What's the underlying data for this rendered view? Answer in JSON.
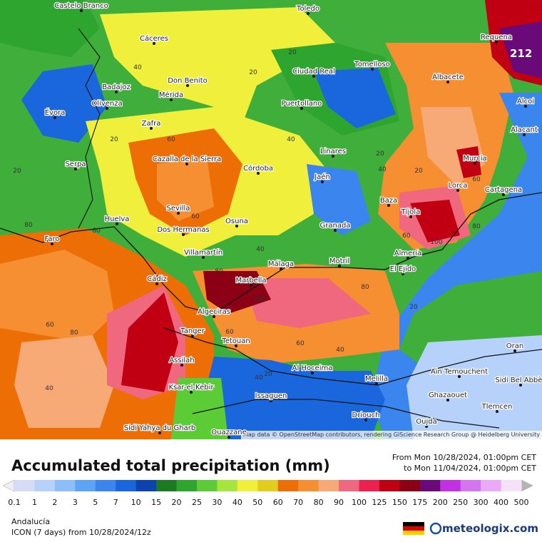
{
  "map": {
    "max_value": 212,
    "attribution": "Map data © OpenStreetMap contributors, rendering GIScience Research Group @ Heidelberg University",
    "cities": [
      "Castelo Branco",
      "Toledo",
      "Cáceres",
      "Requena",
      "Badajoz",
      "Don Benito",
      "Mérida",
      "Ciudad Real",
      "Tomelloso",
      "Albacete",
      "Évora",
      "Olivenza",
      "Puertollano",
      "Zafra",
      "Alcoi",
      "Alacant",
      "Serpa",
      "Cazalla de la Sierra",
      "Córdoba",
      "Linares",
      "Murcia",
      "Jaén",
      "Lorca",
      "Cartagena",
      "Sevilla",
      "Baza",
      "Tíjola",
      "Huelva",
      "Faro",
      "Dos Hermanas",
      "Osuna",
      "Granada",
      "Villamartín",
      "Almería",
      "Málaga",
      "Motril",
      "El Ejido",
      "Cádiz",
      "Marbella",
      "Algeciras",
      "Tanger",
      "Tetouan",
      "Assilah",
      "Al Hoceima",
      "Melilla",
      "Oran",
      "Ain Temouchent",
      "Ghazaouet",
      "Sidi Bel Abbès",
      "Ksar-el-Kebir",
      "Issaguen",
      "Tlemcen",
      "Driouch",
      "Oujda",
      "Sidi Yahya du Gharb",
      "Ouazzane"
    ],
    "contours": [
      40,
      20,
      20,
      40,
      20,
      60,
      60,
      40,
      20,
      20,
      40,
      20,
      60,
      80,
      60,
      40,
      100,
      80,
      60,
      40,
      80,
      100,
      80,
      60,
      40,
      20,
      80,
      60,
      60,
      20
    ]
  },
  "legend": {
    "title": "Accumulated total precipitation (mm)",
    "period_from": "From Mon 10/28/2024, 01:00pm CET",
    "period_to": "to Mon 11/04/2024, 01:00pm CET",
    "levels": [
      0.1,
      1,
      2,
      3,
      5,
      7,
      10,
      15,
      20,
      25,
      30,
      40,
      50,
      60,
      70,
      80,
      90,
      100,
      125,
      150,
      175,
      200,
      250,
      300,
      400,
      500
    ],
    "colors": [
      "#d6dcf6",
      "#b6d2fb",
      "#8cbefc",
      "#5ca4f6",
      "#3a86ee",
      "#1a66dc",
      "#0c44ac",
      "#1c7a22",
      "#2ea52e",
      "#5ccc36",
      "#a6e63c",
      "#f0f03c",
      "#e2cc1e",
      "#ee6e06",
      "#f68e32",
      "#f8aa76",
      "#f0687e",
      "#ee2050",
      "#c00012",
      "#8c0016",
      "#6a0a78",
      "#c032e0",
      "#d474f0",
      "#eaaaf8",
      "#f6e2f8"
    ],
    "low_color": "#eeeef8",
    "high_color": "#b4b4b4"
  },
  "footer": {
    "region": "Andalucía",
    "model": "ICON (7 days) from 10/28/2024/12z",
    "brand": "meteologix.com"
  }
}
